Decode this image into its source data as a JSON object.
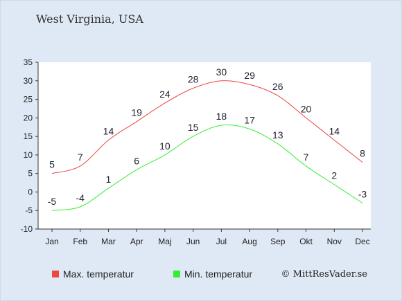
{
  "chart_data": {
    "type": "line",
    "title": "West Virginia, USA",
    "categories": [
      "Jan",
      "Feb",
      "Mar",
      "Apr",
      "Maj",
      "Jun",
      "Jul",
      "Aug",
      "Sep",
      "Okt",
      "Nov",
      "Dec"
    ],
    "ylim": [
      -10,
      35
    ],
    "yticks": [
      -10,
      -5,
      0,
      5,
      10,
      15,
      20,
      25,
      30,
      35
    ],
    "grid": false,
    "legend_placement": "bottom-left",
    "series": [
      {
        "name": "Max. temperatur",
        "color": "#ee4444",
        "values": [
          5,
          7,
          14,
          19,
          24,
          28,
          30,
          29,
          26,
          20,
          14,
          8
        ]
      },
      {
        "name": "Min. temperatur",
        "color": "#33ee33",
        "values": [
          -5,
          -4,
          1,
          6,
          10,
          15,
          18,
          17,
          13,
          7,
          2,
          -3
        ]
      }
    ]
  },
  "credit": "© MittResVader.se"
}
